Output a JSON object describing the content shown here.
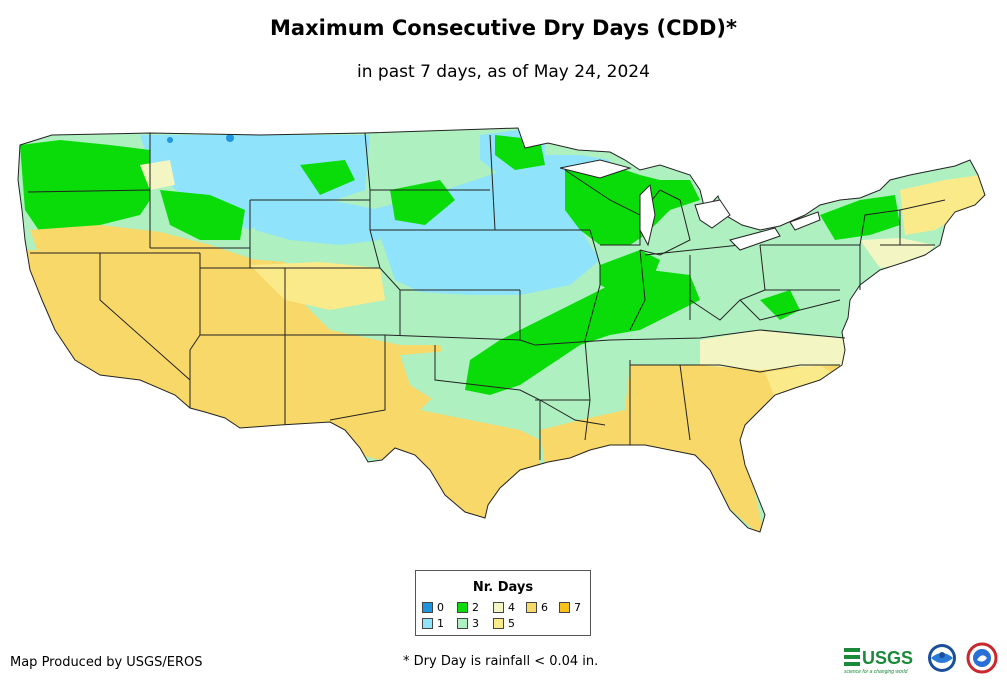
{
  "title": "Maximum Consecutive Dry Days (CDD)*",
  "subtitle": "in past 7 days, as of May 24, 2024",
  "legend": {
    "title": "Nr. Days",
    "items": [
      {
        "label": "0",
        "color": "#1f95e0"
      },
      {
        "label": "1",
        "color": "#8fe3fb"
      },
      {
        "label": "2",
        "color": "#0adc0a"
      },
      {
        "label": "3",
        "color": "#aef0c0"
      },
      {
        "label": "4",
        "color": "#f3f6c2"
      },
      {
        "label": "5",
        "color": "#fbea8a"
      },
      {
        "label": "6",
        "color": "#f8d868"
      },
      {
        "label": "7",
        "color": "#f6c21a"
      }
    ]
  },
  "credit": "Map Produced by USGS/EROS",
  "footnote": "* Dry Day is rainfall < 0.04 in.",
  "logos": {
    "usgs": "USGS",
    "usgs_tagline": "science for a changing world",
    "noaa": "NOAA",
    "nws": "NWS"
  }
}
